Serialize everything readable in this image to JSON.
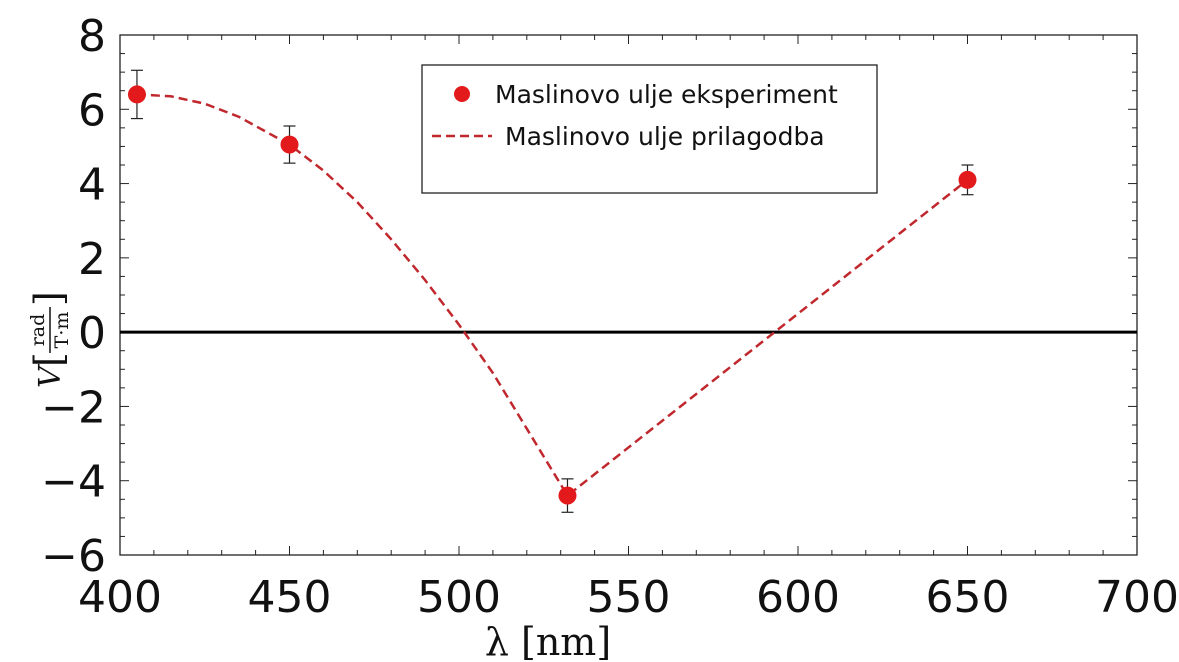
{
  "chart_data": {
    "type": "scatter",
    "title": "",
    "xlabel": "λ [nm]",
    "ylabel": {
      "symbol": "V",
      "unit_numerator": "rad",
      "unit_denominator": "T·m"
    },
    "xlim": [
      400,
      700
    ],
    "ylim": [
      -6,
      8
    ],
    "x_ticks": [
      400,
      450,
      500,
      550,
      600,
      650,
      700
    ],
    "x_tick_labels": [
      "400",
      "450",
      "500",
      "550",
      "600",
      "650",
      "700"
    ],
    "y_ticks": [
      -6,
      -4,
      -2,
      0,
      2,
      4,
      6,
      8
    ],
    "y_tick_labels": [
      "−6",
      "−4",
      "−2",
      "0",
      "2",
      "4",
      "6",
      "8"
    ],
    "zero_line": true,
    "grid": false,
    "legend_position": "top-center",
    "series": [
      {
        "name": "Maslinovo ulje eksperiment",
        "kind": "points-with-error-bars",
        "color": "#e31a1c",
        "points": [
          {
            "x": 405,
            "y": 6.4,
            "err": 0.65
          },
          {
            "x": 450,
            "y": 5.05,
            "err": 0.5
          },
          {
            "x": 532,
            "y": -4.4,
            "err": 0.45
          },
          {
            "x": 650,
            "y": 4.1,
            "err": 0.4
          }
        ]
      },
      {
        "name": "Maslinovo ulje prilagodba",
        "kind": "dashed-line",
        "color": "#c0282d",
        "points": [
          {
            "x": 405,
            "y": 6.4
          },
          {
            "x": 415,
            "y": 6.35
          },
          {
            "x": 425,
            "y": 6.15
          },
          {
            "x": 435,
            "y": 5.8
          },
          {
            "x": 445,
            "y": 5.3
          },
          {
            "x": 450,
            "y": 5.05
          },
          {
            "x": 460,
            "y": 4.35
          },
          {
            "x": 470,
            "y": 3.5
          },
          {
            "x": 480,
            "y": 2.5
          },
          {
            "x": 490,
            "y": 1.4
          },
          {
            "x": 500,
            "y": 0.2
          },
          {
            "x": 510,
            "y": -1.1
          },
          {
            "x": 520,
            "y": -2.6
          },
          {
            "x": 532,
            "y": -4.4
          },
          {
            "x": 650,
            "y": 4.1
          }
        ]
      }
    ]
  }
}
